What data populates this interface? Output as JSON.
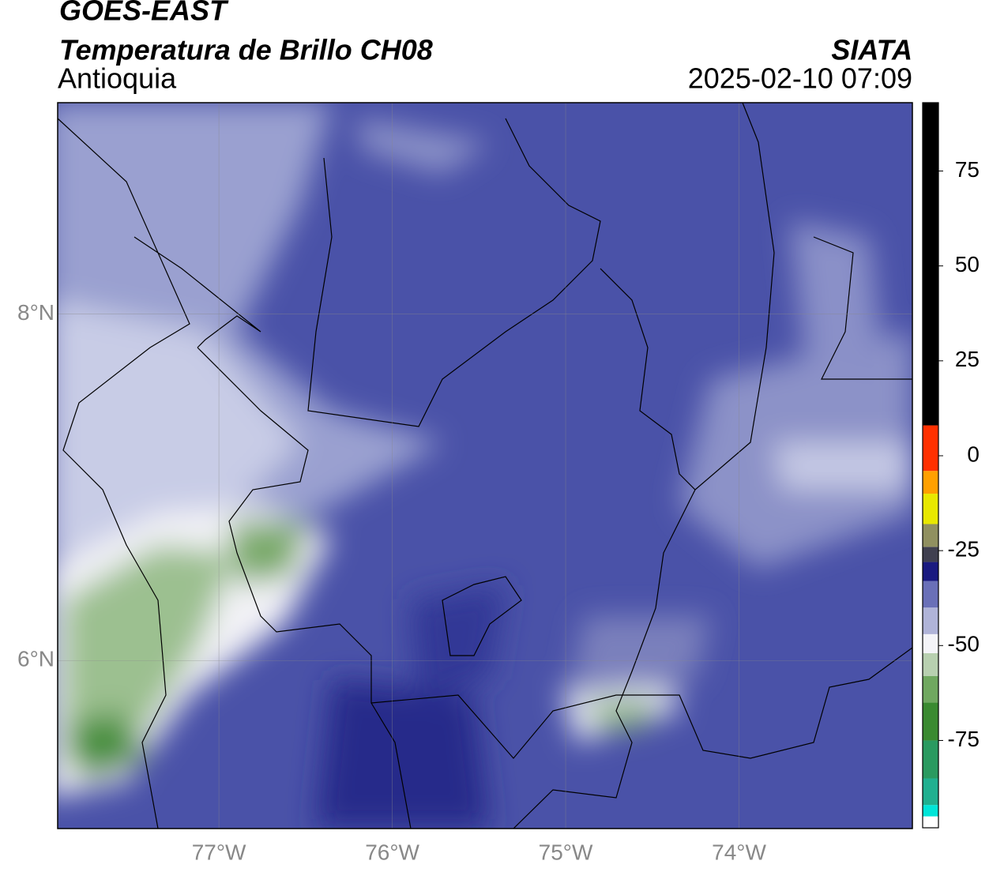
{
  "header": {
    "title": "GOES-EAST",
    "subtitle": "Temperatura de Brillo CH08",
    "region": "Antioquia",
    "source": "SIATA",
    "datetime": "2025-02-10 07:09"
  },
  "map": {
    "xlim": [
      -77.93,
      -73
    ],
    "ylim": [
      5.03,
      9.22
    ],
    "xticks": [
      {
        "value": -77,
        "label": "77°W"
      },
      {
        "value": -76,
        "label": "76°W"
      },
      {
        "value": -75,
        "label": "75°W"
      },
      {
        "value": -74,
        "label": "74°W"
      }
    ],
    "yticks": [
      {
        "value": 6,
        "label": "6°N"
      },
      {
        "value": 8,
        "label": "8°N"
      }
    ],
    "grid": true
  },
  "colorbar": {
    "ylim": [
      -98,
      93
    ],
    "ticks": [
      -75,
      -50,
      -25,
      0,
      25,
      50,
      75
    ],
    "segments": [
      {
        "lo": -98,
        "hi": -95,
        "color": "#ffffff"
      },
      {
        "lo": -95,
        "hi": -92,
        "color": "#00e5d8"
      },
      {
        "lo": -92,
        "hi": -85,
        "color": "#20b090"
      },
      {
        "lo": -85,
        "hi": -75,
        "color": "#2a9a60"
      },
      {
        "lo": -75,
        "hi": -65,
        "color": "#3a8a30"
      },
      {
        "lo": -65,
        "hi": -58,
        "color": "#70a860"
      },
      {
        "lo": -58,
        "hi": -52,
        "color": "#b8d0b0"
      },
      {
        "lo": -52,
        "hi": -47,
        "color": "#f4f4f8"
      },
      {
        "lo": -47,
        "hi": -40,
        "color": "#b0b4d8"
      },
      {
        "lo": -40,
        "hi": -33,
        "color": "#6a70b8"
      },
      {
        "lo": -33,
        "hi": -28,
        "color": "#1a1a80"
      },
      {
        "lo": -28,
        "hi": -24,
        "color": "#404050"
      },
      {
        "lo": -24,
        "hi": -18,
        "color": "#909060"
      },
      {
        "lo": -18,
        "hi": -10,
        "color": "#e8e800"
      },
      {
        "lo": -10,
        "hi": -4,
        "color": "#ffa000"
      },
      {
        "lo": -4,
        "hi": 8,
        "color": "#ff3000"
      },
      {
        "lo": 8,
        "hi": 93,
        "color": "#000000"
      }
    ]
  }
}
